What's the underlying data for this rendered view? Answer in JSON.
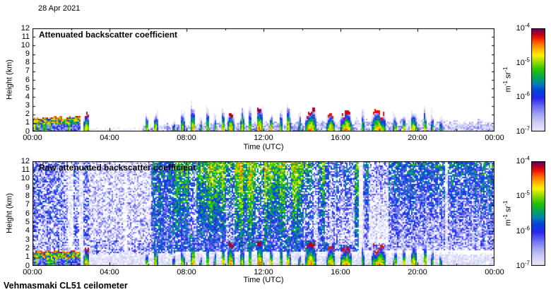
{
  "page": {
    "date": "28 Apr 2021",
    "footer": "Vehmasmaki CL51 ceilometer"
  },
  "chart_data": [
    {
      "type": "heatmap",
      "title": "Attenuated backscatter coefficient",
      "xlabel": "Time (UTC)",
      "ylabel": "Height (km)",
      "x_ticks": [
        "00:00",
        "04:00",
        "08:00",
        "12:00",
        "16:00",
        "20:00",
        "00:00"
      ],
      "x_range_hours": [
        0,
        24
      ],
      "y_ticks": [
        "12",
        "11",
        "10",
        "9",
        "8",
        "7",
        "6",
        "5",
        "4",
        "3",
        "2",
        "1",
        "0"
      ],
      "y_range_km": [
        0,
        12
      ],
      "colorbar": {
        "ticks": [
          {
            "base": "10",
            "exp": "-4"
          },
          {
            "base": "10",
            "exp": "-5"
          },
          {
            "base": "10",
            "exp": "-6"
          },
          {
            "base": "10",
            "exp": "-7"
          }
        ],
        "unit": [
          {
            "base": "m",
            "exp": "-1"
          },
          {
            "base": "sr",
            "exp": "-1"
          }
        ],
        "range_exp": [
          -7,
          -4
        ]
      },
      "colormap": [
        [
          0,
          "#e9e9fb"
        ],
        [
          0.08,
          "#d0d0f7"
        ],
        [
          0.16,
          "#a6a6f2"
        ],
        [
          0.24,
          "#6e6ef2"
        ],
        [
          0.32,
          "#2828ee"
        ],
        [
          0.4,
          "#0046d8"
        ],
        [
          0.46,
          "#0082b4"
        ],
        [
          0.52,
          "#00a45a"
        ],
        [
          0.6,
          "#2cc200"
        ],
        [
          0.68,
          "#9ee000"
        ],
        [
          0.74,
          "#fdf300"
        ],
        [
          0.8,
          "#ffb400"
        ],
        [
          0.86,
          "#ff6400"
        ],
        [
          0.91,
          "#ef1600"
        ],
        [
          0.95,
          "#b4001e"
        ],
        [
          0.98,
          "#82004b"
        ],
        [
          1,
          "#55005f"
        ]
      ],
      "render": {
        "seed": 11,
        "shadows": 0,
        "regions": [
          {
            "t": [
              2.95,
              5.75
            ],
            "h": [
              0,
              0.5
            ],
            "v": [
              -7.05,
              -7.05
            ],
            "jitter": 0.12,
            "dropout": 0.55,
            "edge": 0.5
          },
          {
            "t": [
              5.75,
              24
            ],
            "h": [
              0,
              1
            ],
            "profile": [
              [
                5.75,
                0.75
              ],
              [
                8,
                0.95
              ],
              [
                12,
                1.15
              ],
              [
                16,
                1.3
              ],
              [
                21,
                1.35
              ],
              [
                24,
                1.15
              ]
            ],
            "v": [
              -6.55,
              -6.85
            ],
            "jitter": 0.38,
            "dropout": 0.1,
            "edge": 0.5,
            "stripe": 0.15
          }
        ],
        "layers": [
          {
            "t": [
              0,
              2.5
            ],
            "base": 0.85,
            "top": [
              1.62,
              1.75
            ],
            "cap_v": -4.35,
            "core_v": -5.15,
            "below_v": -6.25,
            "wiggle": 0.1,
            "precip": 0.35
          }
        ],
        "clouds": [
          {
            "t": 2.8,
            "w": 0.14,
            "top": 1.95,
            "v": -4.5,
            "cap": 1
          },
          {
            "t": 5.95,
            "w": 0.09,
            "top": 2.1,
            "v": -4.8
          },
          {
            "t": 6.4,
            "w": 0.1,
            "top": 2.3,
            "v": -4.6
          },
          {
            "t": 7.35,
            "w": 0.07,
            "top": 1.5,
            "v": -5.0
          },
          {
            "t": 7.8,
            "w": 0.1,
            "top": 2.0,
            "v": -4.7
          },
          {
            "t": 8.35,
            "w": 0.12,
            "top": 3.1,
            "v": -4.55,
            "shadow": 1
          },
          {
            "t": 8.75,
            "w": 0.06,
            "top": 1.6,
            "v": -5.2
          },
          {
            "t": 9.1,
            "w": 0.08,
            "top": 2.6,
            "v": -4.8
          },
          {
            "t": 9.5,
            "w": 0.07,
            "top": 2.2,
            "v": -5.0
          },
          {
            "t": 9.9,
            "w": 0.1,
            "top": 2.8,
            "v": -4.65
          },
          {
            "t": 10.3,
            "w": 0.16,
            "top": 2.3,
            "v": -4.5,
            "cap": 1,
            "shadow": 1
          },
          {
            "t": 10.9,
            "w": 0.1,
            "top": 2.4,
            "v": -4.7
          },
          {
            "t": 11.3,
            "w": 0.08,
            "top": 2.9,
            "v": -4.8
          },
          {
            "t": 11.8,
            "w": 0.16,
            "top": 2.55,
            "v": -4.45,
            "cap": 1,
            "shadow": 1
          },
          {
            "t": 12.4,
            "w": 0.1,
            "top": 2.2,
            "v": -4.6
          },
          {
            "t": 12.9,
            "w": 0.08,
            "top": 2.7,
            "v": -4.9
          },
          {
            "t": 13.3,
            "w": 0.1,
            "top": 3.05,
            "v": -4.55,
            "shadow": 1
          },
          {
            "t": 13.9,
            "w": 0.07,
            "top": 2.0,
            "v": -5.0
          },
          {
            "t": 14.45,
            "w": 0.28,
            "top": 2.45,
            "v": -4.5,
            "cap": 1,
            "shadow": 1
          },
          {
            "t": 15.5,
            "w": 0.22,
            "top": 2.2,
            "v": -4.6,
            "cap": 1,
            "shadow": 1
          },
          {
            "t": 16.3,
            "w": 0.32,
            "top": 2.05,
            "v": -4.55,
            "cap": 1,
            "shadow": 1
          },
          {
            "t": 17.15,
            "w": 0.08,
            "top": 2.5,
            "v": -5.0
          },
          {
            "t": 18.0,
            "w": 0.38,
            "top": 2.2,
            "v": -4.6,
            "cap": 1,
            "shadow": 1
          },
          {
            "t": 18.85,
            "w": 0.1,
            "top": 2.0,
            "v": -4.8
          },
          {
            "t": 19.3,
            "w": 0.1,
            "top": 2.3,
            "v": -4.7
          },
          {
            "t": 19.8,
            "w": 0.15,
            "top": 2.5,
            "v": -4.6
          },
          {
            "t": 20.4,
            "w": 0.1,
            "top": 2.4,
            "v": -4.7
          },
          {
            "t": 20.8,
            "w": 0.08,
            "top": 2.2,
            "v": -4.9
          },
          {
            "t": 21.2,
            "w": 0.07,
            "top": 1.8,
            "v": -5.1
          }
        ],
        "surface": {
          "v": -4.55,
          "h": 0.08,
          "t_ranges": [
            [
              0,
              1.05
            ],
            [
              3.9,
              4.2
            ],
            [
              5.85,
              9.35
            ],
            [
              9.7,
              10.5
            ],
            [
              11.5,
              13.25
            ],
            [
              14.1,
              16.7
            ],
            [
              17.4,
              18.4
            ],
            [
              19.2,
              21.3
            ]
          ]
        }
      }
    },
    {
      "type": "heatmap",
      "title": "Raw attenuated backscatter coefficient",
      "xlabel": "Time (UTC)",
      "ylabel": "Height (km)",
      "x_ticks": [
        "00:00",
        "04:00",
        "08:00",
        "12:00",
        "16:00",
        "20:00",
        "00:00"
      ],
      "x_range_hours": [
        0,
        24
      ],
      "y_ticks": [
        "12",
        "11",
        "10",
        "9",
        "8",
        "7",
        "6",
        "5",
        "4",
        "3",
        "2",
        "1",
        "0"
      ],
      "y_range_km": [
        0,
        12
      ],
      "colorbar": {
        "ticks": [
          {
            "base": "10",
            "exp": "-4"
          },
          {
            "base": "10",
            "exp": "-5"
          },
          {
            "base": "10",
            "exp": "-6"
          },
          {
            "base": "10",
            "exp": "-7"
          }
        ],
        "unit": [
          {
            "base": "m",
            "exp": "-1"
          },
          {
            "base": "sr",
            "exp": "-1"
          }
        ],
        "range_exp": [
          -7,
          -4
        ]
      },
      "colormap": [
        [
          0,
          "#e9e9fb"
        ],
        [
          0.08,
          "#d0d0f7"
        ],
        [
          0.16,
          "#a6a6f2"
        ],
        [
          0.24,
          "#6e6ef2"
        ],
        [
          0.32,
          "#2828ee"
        ],
        [
          0.4,
          "#0046d8"
        ],
        [
          0.46,
          "#0082b4"
        ],
        [
          0.52,
          "#00a45a"
        ],
        [
          0.6,
          "#2cc200"
        ],
        [
          0.68,
          "#9ee000"
        ],
        [
          0.74,
          "#fdf300"
        ],
        [
          0.8,
          "#ffb400"
        ],
        [
          0.86,
          "#ff6400"
        ],
        [
          0.91,
          "#ef1600"
        ],
        [
          0.95,
          "#b4001e"
        ],
        [
          0.98,
          "#82004b"
        ],
        [
          1,
          "#55005f"
        ]
      ],
      "render": {
        "seed": 77,
        "shadows": 1,
        "regions": [
          {
            "t": [
              0,
              6.15
            ],
            "h": [
              1.2,
              12
            ],
            "v": [
              -6.45,
              -6.45
            ],
            "jitter": 0.55,
            "dropout": 0.28,
            "stripe": 0.2
          },
          {
            "t": [
              0,
              1.6
            ],
            "h": [
              5,
              12
            ],
            "v": [
              -6.3,
              -6.3
            ],
            "jitter": 0.6,
            "dropout": 0.22
          },
          {
            "t": [
              3.0,
              6.15
            ],
            "h": [
              3,
              12
            ],
            "v": [
              -6.6,
              -6.7
            ],
            "jitter": 0.45,
            "dropout": 0.38
          },
          {
            "t": [
              1.85,
              2.1
            ],
            "h": [
              1,
              12
            ],
            "v": [
              -6.85,
              -6.85
            ],
            "jitter": 0.3,
            "dropout": 0.55
          },
          {
            "t": [
              2.45,
              2.65
            ],
            "h": [
              1,
              12
            ],
            "v": [
              -6.85,
              -6.85
            ],
            "jitter": 0.3,
            "dropout": 0.5
          },
          {
            "t": [
              4.75,
              4.95
            ],
            "h": [
              1,
              12
            ],
            "v": [
              -6.9,
              -6.9
            ],
            "jitter": 0.3,
            "dropout": 0.55
          },
          {
            "t": [
              6.15,
              7.4
            ],
            "h": [
              1.3,
              12
            ],
            "v": [
              -6.1,
              -5.7
            ],
            "jitter": 0.5,
            "dropout": 0.12,
            "stripe": 0.25
          },
          {
            "t": [
              7.4,
              9.0
            ],
            "h": [
              1.6,
              12
            ],
            "v": [
              -6.1,
              -5.25
            ],
            "jitter": 0.5,
            "dropout": 0.1,
            "stripe": 0.25
          },
          {
            "t": [
              9.0,
              14.6
            ],
            "h": [
              1.6,
              12
            ],
            "v": [
              -6.05,
              -4.95
            ],
            "jitter": 0.5,
            "dropout": 0.08,
            "stripe": 0.25
          },
          {
            "t": [
              14.6,
              16.95
            ],
            "h": [
              1.6,
              12
            ],
            "v": [
              -6.2,
              -5.45
            ],
            "jitter": 0.5,
            "dropout": 0.12,
            "stripe": 0.25
          },
          {
            "t": [
              16.93,
              17.2
            ],
            "h": [
              0.6,
              12
            ],
            "v": [
              -7.05,
              -7.0
            ],
            "jitter": 0.15,
            "dropout": 0.6
          },
          {
            "t": [
              17.2,
              24
            ],
            "h": [
              1.8,
              12
            ],
            "v": [
              -6.6,
              -5.75
            ],
            "jitter": 0.5,
            "dropout": 0.16,
            "stripe": 0.2
          },
          {
            "t": [
              21.4,
              21.6
            ],
            "h": [
              1,
              12
            ],
            "v": [
              -6.85,
              -6.85
            ],
            "jitter": 0.3,
            "dropout": 0.5
          },
          {
            "t": [
              0,
              24
            ],
            "h": [
              0,
              1.45
            ],
            "v": [
              -6.9,
              -6.95
            ],
            "jitter": 0.22,
            "dropout": 0.12,
            "edge": 0.25
          }
        ],
        "layers": [
          {
            "t": [
              0,
              2.5
            ],
            "base": 0.85,
            "top": [
              1.62,
              1.75
            ],
            "cap_v": -4.35,
            "core_v": -5.15,
            "below_v": -6.25,
            "wiggle": 0.1,
            "precip": 0.35
          }
        ],
        "clouds": [
          {
            "t": 2.8,
            "w": 0.14,
            "top": 1.95,
            "v": -4.5,
            "cap": 1
          },
          {
            "t": 5.95,
            "w": 0.09,
            "top": 2.1,
            "v": -4.8
          },
          {
            "t": 6.4,
            "w": 0.1,
            "top": 2.3,
            "v": -4.6
          },
          {
            "t": 7.35,
            "w": 0.07,
            "top": 1.5,
            "v": -5.0
          },
          {
            "t": 7.8,
            "w": 0.1,
            "top": 2.0,
            "v": -4.7
          },
          {
            "t": 8.35,
            "w": 0.12,
            "top": 3.1,
            "v": -4.55,
            "shadow": 1
          },
          {
            "t": 8.75,
            "w": 0.06,
            "top": 1.6,
            "v": -5.2
          },
          {
            "t": 9.1,
            "w": 0.08,
            "top": 2.6,
            "v": -4.8
          },
          {
            "t": 9.5,
            "w": 0.07,
            "top": 2.2,
            "v": -5.0
          },
          {
            "t": 9.9,
            "w": 0.1,
            "top": 2.8,
            "v": -4.65
          },
          {
            "t": 10.3,
            "w": 0.16,
            "top": 2.3,
            "v": -4.5,
            "cap": 1,
            "shadow": 1
          },
          {
            "t": 10.9,
            "w": 0.1,
            "top": 2.4,
            "v": -4.7
          },
          {
            "t": 11.3,
            "w": 0.08,
            "top": 2.9,
            "v": -4.8
          },
          {
            "t": 11.8,
            "w": 0.16,
            "top": 2.55,
            "v": -4.45,
            "cap": 1,
            "shadow": 1
          },
          {
            "t": 12.4,
            "w": 0.1,
            "top": 2.2,
            "v": -4.6
          },
          {
            "t": 12.9,
            "w": 0.08,
            "top": 2.7,
            "v": -4.9
          },
          {
            "t": 13.3,
            "w": 0.1,
            "top": 3.05,
            "v": -4.55,
            "shadow": 1
          },
          {
            "t": 13.9,
            "w": 0.07,
            "top": 2.0,
            "v": -5.0
          },
          {
            "t": 14.45,
            "w": 0.28,
            "top": 2.45,
            "v": -4.5,
            "cap": 1,
            "shadow": 1
          },
          {
            "t": 15.5,
            "w": 0.22,
            "top": 2.2,
            "v": -4.6,
            "cap": 1,
            "shadow": 1
          },
          {
            "t": 16.3,
            "w": 0.32,
            "top": 2.05,
            "v": -4.55,
            "cap": 1,
            "shadow": 1
          },
          {
            "t": 17.15,
            "w": 0.08,
            "top": 2.5,
            "v": -5.0
          },
          {
            "t": 18.0,
            "w": 0.38,
            "top": 2.2,
            "v": -4.6,
            "cap": 1,
            "shadow": 1
          },
          {
            "t": 18.85,
            "w": 0.1,
            "top": 2.0,
            "v": -4.8
          },
          {
            "t": 19.3,
            "w": 0.1,
            "top": 2.3,
            "v": -4.7
          },
          {
            "t": 19.8,
            "w": 0.15,
            "top": 2.5,
            "v": -4.6
          },
          {
            "t": 20.4,
            "w": 0.1,
            "top": 2.4,
            "v": -4.7
          },
          {
            "t": 20.8,
            "w": 0.08,
            "top": 2.2,
            "v": -4.9
          },
          {
            "t": 21.2,
            "w": 0.07,
            "top": 1.8,
            "v": -5.1
          }
        ],
        "surface": {
          "v": -4.55,
          "h": 0.08,
          "t_ranges": [
            [
              0,
              1.05
            ],
            [
              3.9,
              4.2
            ],
            [
              5.85,
              9.35
            ],
            [
              9.7,
              10.5
            ],
            [
              11.5,
              13.25
            ],
            [
              14.1,
              16.7
            ],
            [
              17.4,
              18.4
            ],
            [
              19.2,
              21.3
            ]
          ]
        }
      }
    }
  ]
}
